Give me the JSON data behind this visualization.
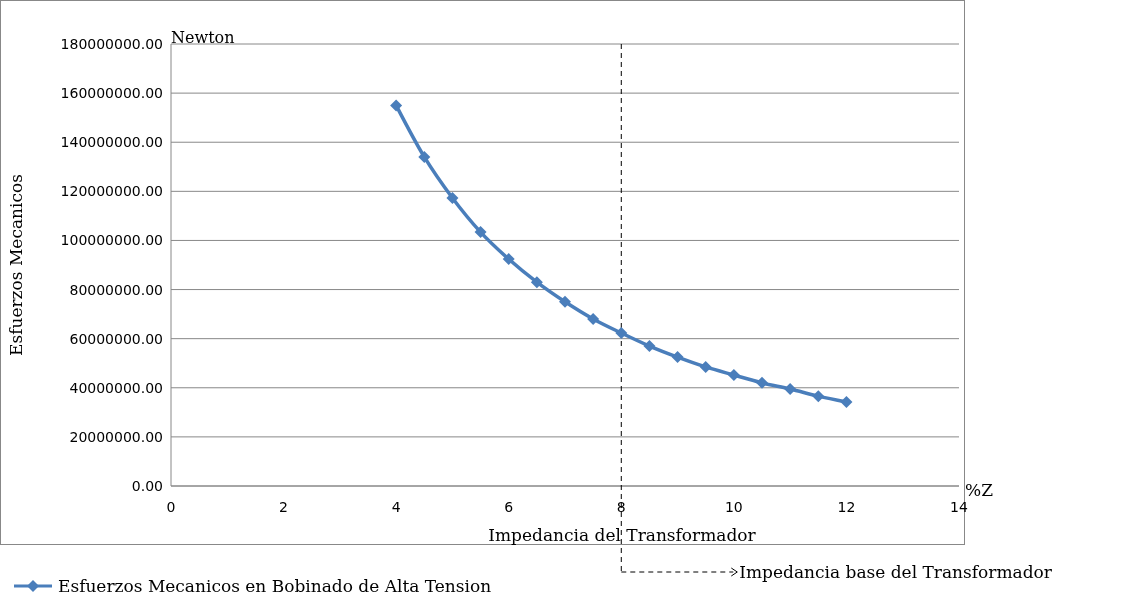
{
  "chart_data": {
    "type": "line",
    "xlabel": "Impedancia del Transformador",
    "ylabel": "Esfuerzos Mecanicos",
    "annotations": [
      "Newton",
      "%Z"
    ],
    "x": [
      4,
      4.5,
      5,
      5.5,
      6,
      6.5,
      7,
      7.5,
      8,
      8.5,
      9,
      9.5,
      10,
      10.5,
      11,
      11.5,
      12
    ],
    "series": [
      {
        "name": "Esfuerzos Mecanicos en Bobinado de Alta Tension",
        "color": "#4a7ebb",
        "values": [
          155000000,
          134000000,
          117300000,
          103400000,
          92400000,
          83000000,
          75000000,
          68000000,
          62300000,
          57000000,
          52500000,
          48500000,
          45200000,
          42000000,
          39500000,
          36600000,
          34200000
        ]
      }
    ],
    "xlim": [
      0,
      14
    ],
    "xticks": [
      0,
      2,
      4,
      6,
      8,
      10,
      12,
      14
    ],
    "ylim": [
      0,
      180000000
    ],
    "yticks": [
      {
        "value": 0,
        "label": "0.00"
      },
      {
        "value": 20000000,
        "label": "20000000.00"
      },
      {
        "value": 40000000,
        "label": "40000000.00"
      },
      {
        "value": 60000000,
        "label": "60000000.00"
      },
      {
        "value": 80000000,
        "label": "80000000.00"
      },
      {
        "value": 100000000,
        "label": "100000000.00"
      },
      {
        "value": 120000000,
        "label": "120000000.00"
      },
      {
        "value": 140000000,
        "label": "140000000.00"
      },
      {
        "value": 160000000,
        "label": "160000000.00"
      },
      {
        "value": 180000000,
        "label": "180000000.00"
      }
    ],
    "ref_lines": [
      {
        "axis": "x",
        "value": 8,
        "label": "Impedancia base del Transformador",
        "color": "#000000",
        "line_style": "dashed"
      }
    ],
    "grid": "y",
    "legend": "bottom left",
    "marker": "diamond",
    "line_style": "solid"
  }
}
